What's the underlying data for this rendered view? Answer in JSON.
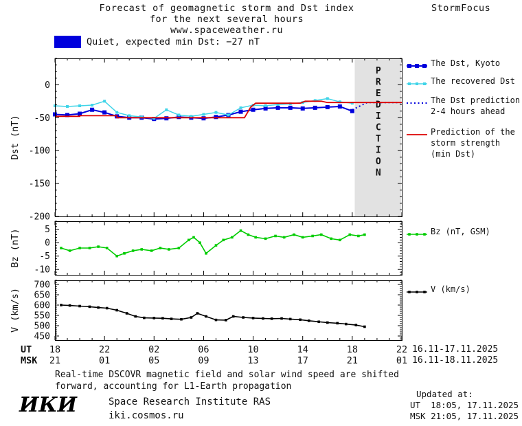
{
  "header": {
    "title_line1": "Forecast of geomagnetic storm and Dst index",
    "title_line2": "for the next several hours",
    "title_line3": "www.spaceweather.ru",
    "brand": "StormFocus"
  },
  "status": {
    "label": "Quiet, expected min Dst: −27 nT",
    "swatch_color": "#0000dd"
  },
  "legend": {
    "dst_kyoto": "The Dst, Kyoto",
    "recovered": "The recovered Dst",
    "prediction_line1": "The Dst prediction",
    "prediction_line2": "2-4 hours ahead",
    "storm_line1": "Prediction of the",
    "storm_line2": "storm strength",
    "storm_line3": "(min Dst)",
    "bz": "Bz (nT, GSM)",
    "v": "V (km/s)"
  },
  "axes": {
    "ut_label": "UT",
    "msk_label": "MSK",
    "ut_ticks": [
      "18",
      "22",
      "02",
      "06",
      "10",
      "14",
      "18",
      "22"
    ],
    "msk_ticks": [
      "21",
      "01",
      "05",
      "09",
      "13",
      "17",
      "21",
      "01"
    ],
    "ut_daterange": "16.11-17.11.2025",
    "msk_daterange": "16.11-18.11.2025"
  },
  "prediction_zone": {
    "label": "PREDICTION",
    "fill": "#e2e2e2",
    "text_color": "#b0b0b0"
  },
  "footer": {
    "note_line1": "Real-time DSCOVR magnetic field and solar wind speed are shifted",
    "note_line2": "forward, accounting for L1-Earth propagation",
    "logo": "ИКИ",
    "institute": "Space Research Institute RAS",
    "site": "iki.cosmos.ru",
    "updated_label": "Updated at:",
    "updated_ut": "UT  18:05, 17.11.2025",
    "updated_msk": "MSK 21:05, 17.11.2025"
  },
  "chart_data": [
    {
      "type": "line",
      "title": "Dst index: observed, recovered and predicted",
      "ylabel": "Dst (nT)",
      "xlabel": "UT hours, 16.11-18.11.2025",
      "ylim": [
        -200,
        40
      ],
      "yticks": [
        0,
        -50,
        -100,
        -150,
        -200
      ],
      "yminor_step": 10,
      "xlim_hours": [
        0,
        28
      ],
      "xticks_hours": [
        0,
        4,
        8,
        12,
        16,
        20,
        24,
        28
      ],
      "prediction_zone": {
        "start_hour": 24.2,
        "end_hour": 28
      },
      "series": [
        {
          "name": "The Dst, Kyoto",
          "color": "#0000dd",
          "marker": "square",
          "marker_size": 6,
          "width": 2,
          "x": [
            0,
            1,
            2,
            3,
            4,
            5,
            6,
            7,
            8,
            9,
            10,
            11,
            12,
            13,
            14,
            15,
            16,
            17,
            18,
            19,
            20,
            21,
            22,
            23,
            24
          ],
          "y": [
            -45,
            -46,
            -44,
            -38,
            -42,
            -48,
            -50,
            -50,
            -52,
            -51,
            -49,
            -50,
            -51,
            -49,
            -46,
            -41,
            -38,
            -36,
            -35,
            -35,
            -36,
            -35,
            -34,
            -33,
            -40
          ]
        },
        {
          "name": "The recovered Dst",
          "color": "#3fd4e8",
          "marker": "square",
          "marker_size": 4,
          "width": 1.5,
          "x": [
            0,
            1,
            2,
            3,
            4,
            5,
            6,
            7,
            8,
            9,
            10,
            11,
            12,
            13,
            14,
            15,
            16,
            17,
            18,
            19,
            20,
            21,
            22,
            23,
            24
          ],
          "y": [
            -32,
            -33,
            -32,
            -31,
            -25,
            -42,
            -47,
            -49,
            -51,
            -38,
            -46,
            -48,
            -45,
            -42,
            -46,
            -35,
            -31,
            -32,
            -30,
            -29,
            -27,
            -24,
            -21,
            -26,
            -28
          ]
        },
        {
          "name": "The Dst prediction 2-4 hours ahead",
          "color": "#0000dd",
          "line": "dotted",
          "width": 2,
          "x": [
            24,
            25.2,
            28
          ],
          "y": [
            -38,
            -27,
            -27
          ]
        },
        {
          "name": "Prediction of the storm strength (min Dst)",
          "color": "#dd0000",
          "width": 1.8,
          "x": [
            0,
            2,
            2,
            5,
            5,
            15.3,
            15.8,
            16.2,
            19.8,
            20.2,
            21.5,
            22,
            28
          ],
          "y": [
            -48,
            -48,
            -47,
            -47,
            -50,
            -50,
            -34,
            -28,
            -28,
            -25,
            -25,
            -27,
            -27
          ]
        }
      ]
    },
    {
      "type": "line",
      "ylabel": "Bz (nT)",
      "ylim": [
        -12,
        8
      ],
      "yticks": [
        5,
        0,
        -5,
        -10
      ],
      "yminor_step": 1,
      "xlim_hours": [
        0,
        28
      ],
      "xticks_hours": [
        0,
        4,
        8,
        12,
        16,
        20,
        24,
        28
      ],
      "series": [
        {
          "name": "Bz (nT, GSM)",
          "color": "#00cc00",
          "marker": "square",
          "marker_size": 3.6,
          "width": 1.6,
          "x": [
            0.5,
            1.2,
            2,
            2.8,
            3.5,
            4.2,
            5,
            5.6,
            6.3,
            7,
            7.8,
            8.5,
            9.2,
            10,
            10.8,
            11.2,
            11.7,
            12.2,
            13,
            13.6,
            14.3,
            15,
            15.6,
            16.2,
            17,
            17.8,
            18.5,
            19.3,
            20,
            20.8,
            21.5,
            22.3,
            23,
            23.8,
            24.5,
            25
          ],
          "y": [
            -2,
            -3,
            -2,
            -2,
            -1.5,
            -2,
            -5,
            -4,
            -3,
            -2.5,
            -3,
            -2,
            -2.5,
            -2,
            1,
            2,
            0,
            -4,
            -1,
            1,
            2,
            4.5,
            3,
            2,
            1.5,
            2.5,
            2,
            3,
            2,
            2.5,
            3,
            1.5,
            1,
            3,
            2.5,
            3
          ]
        }
      ]
    },
    {
      "type": "line",
      "ylabel": "V (km/s)",
      "ylim": [
        430,
        720
      ],
      "yticks": [
        700,
        650,
        600,
        550,
        500,
        450
      ],
      "yminor_step": 10,
      "xlim_hours": [
        0,
        28
      ],
      "xticks_hours": [
        0,
        4,
        8,
        12,
        16,
        20,
        24,
        28
      ],
      "series": [
        {
          "name": "V (km/s)",
          "color": "#000000",
          "marker": "square",
          "marker_size": 3.6,
          "width": 1.6,
          "x": [
            0.5,
            1.2,
            2,
            2.8,
            3.5,
            4.2,
            5,
            5.8,
            6.5,
            7.2,
            8,
            8.7,
            9.4,
            10.2,
            11,
            11.5,
            12.2,
            13,
            13.8,
            14.4,
            15.2,
            16,
            16.8,
            17.5,
            18.3,
            19,
            19.8,
            20.5,
            21.3,
            22,
            22.8,
            23.5,
            24.3,
            25
          ],
          "y": [
            600,
            598,
            595,
            592,
            588,
            585,
            575,
            560,
            545,
            538,
            537,
            536,
            533,
            531,
            540,
            560,
            545,
            528,
            527,
            545,
            540,
            537,
            535,
            534,
            535,
            532,
            529,
            524,
            519,
            515,
            512,
            508,
            503,
            495
          ]
        }
      ]
    }
  ]
}
